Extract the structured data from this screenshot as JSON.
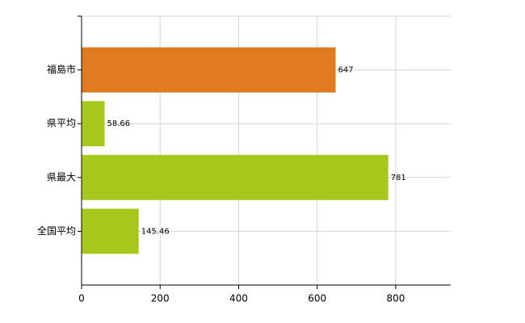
{
  "chart_data": {
    "type": "bar",
    "orientation": "horizontal",
    "categories": [
      "福島市",
      "県平均",
      "県最大",
      "全国平均"
    ],
    "values": [
      647,
      58.66,
      781,
      145.46
    ],
    "colors": [
      "#e07b22",
      "#a6c81e",
      "#a6c81e",
      "#a6c81e"
    ],
    "xlim": [
      0,
      940
    ],
    "xticks": [
      0,
      200,
      400,
      600,
      800
    ],
    "grid": true
  }
}
